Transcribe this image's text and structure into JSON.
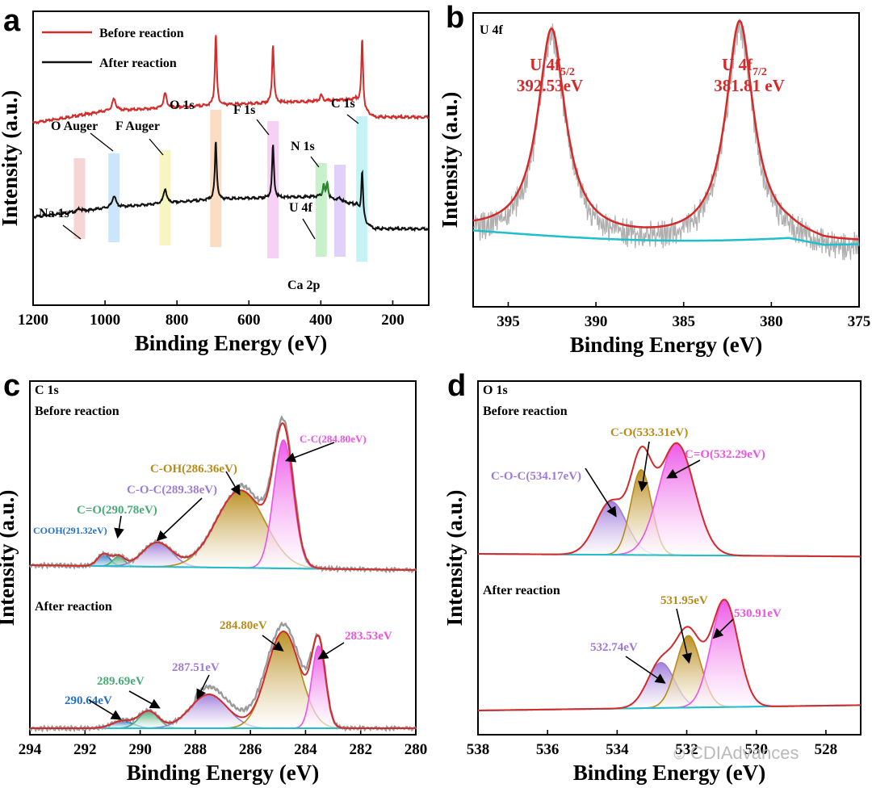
{
  "watermark": "CDIAdvances",
  "colors": {
    "red": "#d42a2a",
    "black": "#111111",
    "gray": "#9a9a9a",
    "cyan": "#1fc0cc",
    "green": "#2c8a2c",
    "gold": "#b88a18",
    "pink": "#ec52e6",
    "purple": "#9d7ad8",
    "blue": "#2270c4",
    "lgreen": "#48aa78"
  },
  "chart_data": [
    {
      "panel": "a",
      "type": "line",
      "xlabel": "Binding Energy (eV)",
      "ylabel": "Intensity (a.u.)",
      "xlim": [
        1200,
        100
      ],
      "xticks": [
        1200,
        1000,
        800,
        600,
        400,
        200
      ],
      "legend": [
        {
          "name": "Before reaction",
          "color": "#d42a2a"
        },
        {
          "name": "After reaction",
          "color": "#111111"
        }
      ],
      "peak_labels": [
        "O Auger",
        "F Auger",
        "O 1s",
        "F 1s",
        "N 1s",
        "C 1s",
        "Na 1s",
        "U 4f",
        "Ca 2p"
      ],
      "bands_ev": [
        1071,
        975,
        833,
        692,
        533,
        399,
        347,
        286
      ],
      "series": [
        {
          "name": "Before reaction",
          "baseline": [
            [
              1200,
              0.62
            ],
            [
              1000,
              0.66
            ],
            [
              700,
              0.68
            ],
            [
              300,
              0.7
            ],
            [
              282,
              0.66
            ],
            [
              250,
              0.64
            ],
            [
              100,
              0.64
            ]
          ],
          "peaks": [
            [
              975,
              0.04,
              6
            ],
            [
              833,
              0.05,
              5
            ],
            [
              692,
              0.24,
              3
            ],
            [
              533,
              0.2,
              3
            ],
            [
              399,
              0.02,
              4
            ],
            [
              285,
              0.24,
              3
            ]
          ]
        },
        {
          "name": "After reaction",
          "baseline": [
            [
              1200,
              0.3
            ],
            [
              1000,
              0.33
            ],
            [
              700,
              0.36
            ],
            [
              400,
              0.37
            ],
            [
              300,
              0.34
            ],
            [
              282,
              0.28
            ],
            [
              250,
              0.26
            ],
            [
              100,
              0.26
            ]
          ],
          "peaks": [
            [
              1071,
              0.01,
              5
            ],
            [
              975,
              0.04,
              6
            ],
            [
              833,
              0.05,
              5
            ],
            [
              692,
              0.2,
              3
            ],
            [
              533,
              0.18,
              3
            ],
            [
              382,
              0.05,
              3
            ],
            [
              392,
              0.04,
              3
            ],
            [
              347,
              0.01,
              5
            ],
            [
              285,
              0.17,
              3
            ]
          ]
        }
      ]
    },
    {
      "panel": "b",
      "type": "line",
      "title": "U 4f",
      "xlabel": "Binding Energy (eV)",
      "ylabel": "Intensity (a.u.)",
      "xlim": [
        397,
        375
      ],
      "xticks": [
        395,
        390,
        385,
        380,
        375
      ],
      "peaks": [
        {
          "label": "U 4f",
          "sub": "5/2",
          "value": "392.53eV",
          "center": 392.53,
          "height": 0.7
        },
        {
          "label": "U 4f",
          "sub": "7/2",
          "value": "381.81 eV",
          "center": 381.81,
          "height": 0.74
        }
      ]
    },
    {
      "panel": "c",
      "type": "area",
      "title": "C 1s",
      "xlabel": "Binding Energy (eV)",
      "ylabel": "Intensity (a.u.)",
      "xlim": [
        294,
        280
      ],
      "xticks": [
        294,
        292,
        290,
        288,
        286,
        284,
        282,
        280
      ],
      "sections": [
        {
          "title": "Before reaction",
          "components": [
            {
              "label": "COOH(291.32eV)",
              "center": 291.32,
              "height": 0.05,
              "color": "#2270c4"
            },
            {
              "label": "C=O(290.78eV)",
              "center": 290.78,
              "height": 0.04,
              "color": "#48aa78"
            },
            {
              "label": "C-O-C(289.38eV)",
              "center": 289.38,
              "height": 0.1,
              "color": "#9d7ad8"
            },
            {
              "label": "C-OH(286.36eV)",
              "center": 286.36,
              "height": 0.32,
              "color": "#b88a18"
            },
            {
              "label": "C-C(284.80eV)",
              "center": 284.8,
              "height": 0.53,
              "color": "#ec52e6"
            }
          ]
        },
        {
          "title": "After reaction",
          "components": [
            {
              "label": "290.64eV",
              "center": 290.64,
              "height": 0.03,
              "color": "#2270c4"
            },
            {
              "label": "289.69eV",
              "center": 289.69,
              "height": 0.07,
              "color": "#48aa78"
            },
            {
              "label": "287.51eV",
              "center": 287.51,
              "height": 0.14,
              "color": "#9d7ad8"
            },
            {
              "label": "284.80eV",
              "center": 284.8,
              "height": 0.4,
              "color": "#b88a18"
            },
            {
              "label": "283.53eV",
              "center": 283.53,
              "height": 0.34,
              "color": "#ec52e6"
            }
          ]
        }
      ]
    },
    {
      "panel": "d",
      "type": "area",
      "title": "O 1s",
      "xlabel": "Binding Energy (eV)",
      "ylabel": "Intensity (a.u.)",
      "xlim": [
        538,
        527
      ],
      "xticks": [
        538,
        536,
        534,
        532,
        530,
        528
      ],
      "sections": [
        {
          "title": "Before reaction",
          "components": [
            {
              "label": "C-O-C(534.17eV)",
              "center": 534.17,
              "height": 0.2,
              "color": "#9d7ad8"
            },
            {
              "label": "C-O(533.31eV)",
              "center": 533.31,
              "height": 0.32,
              "color": "#b88a18"
            },
            {
              "label": "C=O(532.29eV)",
              "center": 532.29,
              "height": 0.42,
              "color": "#ec52e6"
            }
          ]
        },
        {
          "title": "After reaction",
          "components": [
            {
              "label": "532.74eV",
              "center": 532.74,
              "height": 0.17,
              "color": "#9d7ad8"
            },
            {
              "label": "531.95eV",
              "center": 531.95,
              "height": 0.27,
              "color": "#b88a18"
            },
            {
              "label": "530.91eV",
              "center": 530.91,
              "height": 0.4,
              "color": "#ec52e6"
            }
          ]
        }
      ]
    }
  ]
}
